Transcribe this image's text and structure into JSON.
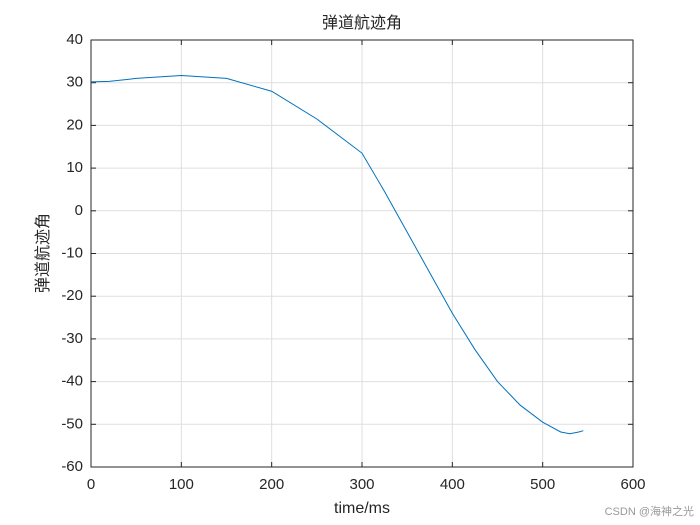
{
  "chart_data": {
    "type": "line",
    "title": "弹道航迹角",
    "xlabel": "time/ms",
    "ylabel": "弹道航迹角",
    "x": [
      0,
      20,
      50,
      100,
      150,
      200,
      250,
      300,
      325,
      350,
      375,
      400,
      425,
      450,
      475,
      500,
      520,
      530,
      540,
      545
    ],
    "series": [
      {
        "name": "弹道航迹角",
        "color": "#0072bd",
        "values": [
          30.2,
          30.3,
          31.0,
          31.7,
          31.0,
          28.0,
          21.5,
          13.5,
          4.5,
          -5,
          -14.5,
          -24,
          -32.5,
          -40,
          -45.5,
          -49.5,
          -51.8,
          -52.2,
          -51.8,
          -51.5
        ]
      }
    ],
    "xlim": [
      0,
      600
    ],
    "xticks": [
      0,
      100,
      200,
      300,
      400,
      500,
      600
    ],
    "ylim": [
      -60,
      40
    ],
    "yticks": [
      -60,
      -50,
      -40,
      -30,
      -20,
      -10,
      0,
      10,
      20,
      30,
      40
    ],
    "grid": true,
    "watermark": "CSDN @海神之光"
  }
}
